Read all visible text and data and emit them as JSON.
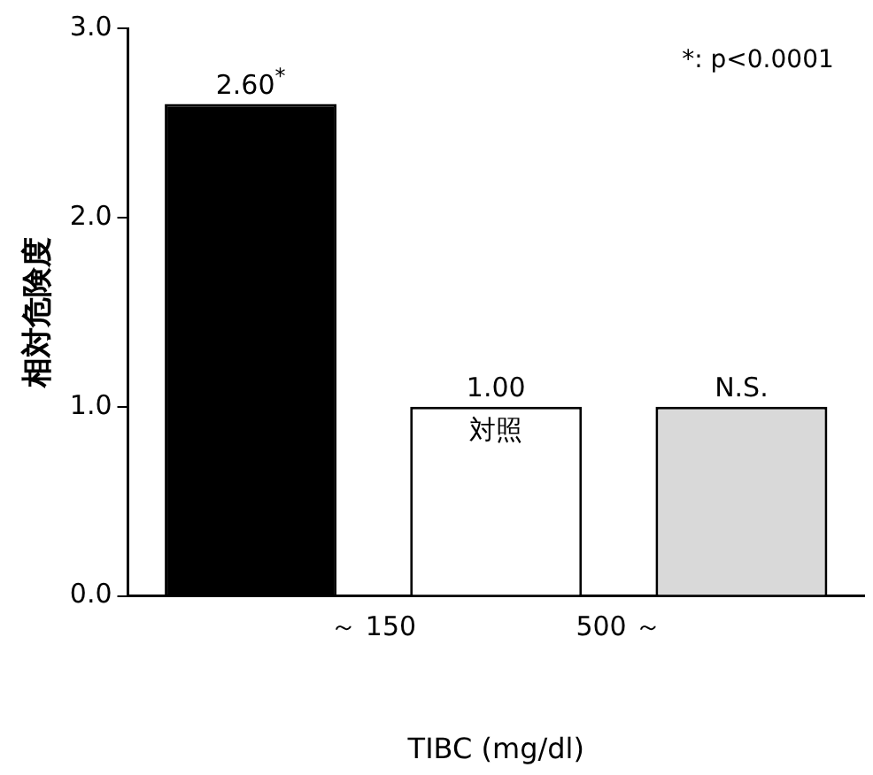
{
  "chart_data": {
    "type": "bar",
    "xlabel": "TIBC (mg/dl)",
    "ylabel": "相対危険度",
    "categories": [
      null,
      null,
      null
    ],
    "values": [
      2.6,
      1.0,
      1.0
    ],
    "colors": [
      "#000000",
      "#ffffff",
      "#d9d9d9"
    ],
    "value_labels": [
      "2.60$^{*}$",
      "1.00",
      "N.S."
    ],
    "ylim": [
      0,
      3
    ],
    "yticks": [
      {
        "value": 0,
        "label": "0.0"
      },
      {
        "value": 1,
        "label": "1.0"
      },
      {
        "value": 2,
        "label": "2.0"
      },
      {
        "value": 3,
        "label": "3.0"
      }
    ],
    "grid": false,
    "legend": false,
    "annotations": [
      "～ 150",
      "500 ～",
      "*: p<0.0001",
      "対照"
    ]
  }
}
